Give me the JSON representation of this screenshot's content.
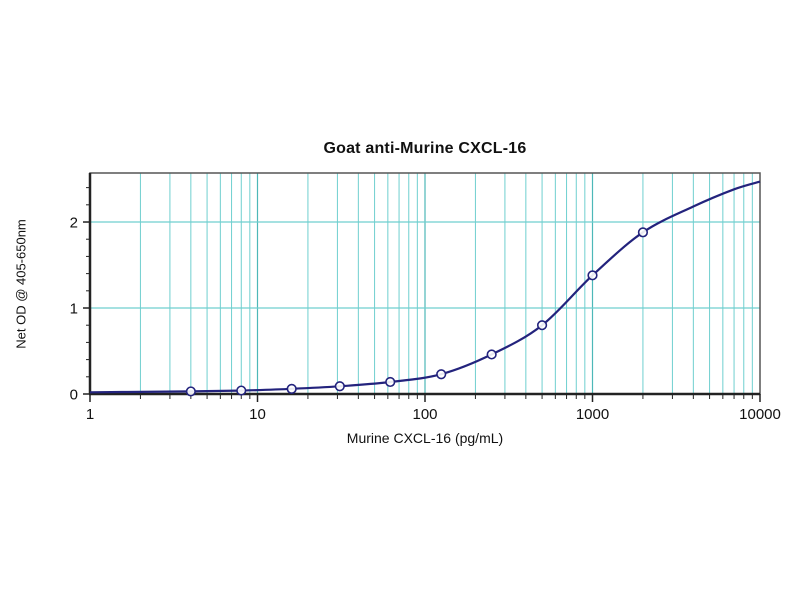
{
  "chart_data": {
    "type": "scatter",
    "title": "Goat anti-Murine CXCL-16",
    "xlabel": "Murine CXCL-16 (pg/mL)",
    "ylabel": "Net OD @ 405-650nm",
    "x_scale": "log",
    "xlim": [
      1,
      10000
    ],
    "ylim": [
      0,
      2.57
    ],
    "x_ticks": [
      1,
      10,
      100,
      1000,
      10000
    ],
    "x_tick_labels": [
      "1",
      "10",
      "100",
      "1000",
      "10000"
    ],
    "x_minor_multiples": [
      2,
      3,
      4,
      5,
      6,
      7,
      8,
      9
    ],
    "y_ticks": [
      0,
      1,
      2
    ],
    "y_tick_labels": [
      "0",
      "1",
      "2"
    ],
    "y_minor_step": 0.2,
    "grid": true,
    "legend": "none",
    "series": [
      {
        "name": "Goat anti-Murine CXCL-16",
        "marker": "open-circle",
        "x": [
          4,
          8,
          16,
          31,
          62,
          125,
          250,
          500,
          1000,
          2000
        ],
        "y": [
          0.03,
          0.04,
          0.06,
          0.09,
          0.14,
          0.23,
          0.46,
          0.8,
          1.38,
          1.88
        ]
      }
    ],
    "fit_curve": {
      "x": [
        1,
        2,
        4,
        8,
        16,
        31,
        62,
        125,
        250,
        500,
        1000,
        2000,
        4000,
        7000,
        10000
      ],
      "y": [
        0.02,
        0.025,
        0.03,
        0.04,
        0.06,
        0.09,
        0.14,
        0.23,
        0.46,
        0.8,
        1.38,
        1.88,
        2.18,
        2.38,
        2.47
      ]
    },
    "colors": {
      "curve": "#23237d",
      "marker_stroke": "#23237d",
      "marker_fill": "#ffffff",
      "grid_minor": "#6fcfcf",
      "grid_major": "#4db8b8",
      "axis": "#222222",
      "frame": "#555555",
      "text": "#111111",
      "background": "#ffffff"
    }
  }
}
